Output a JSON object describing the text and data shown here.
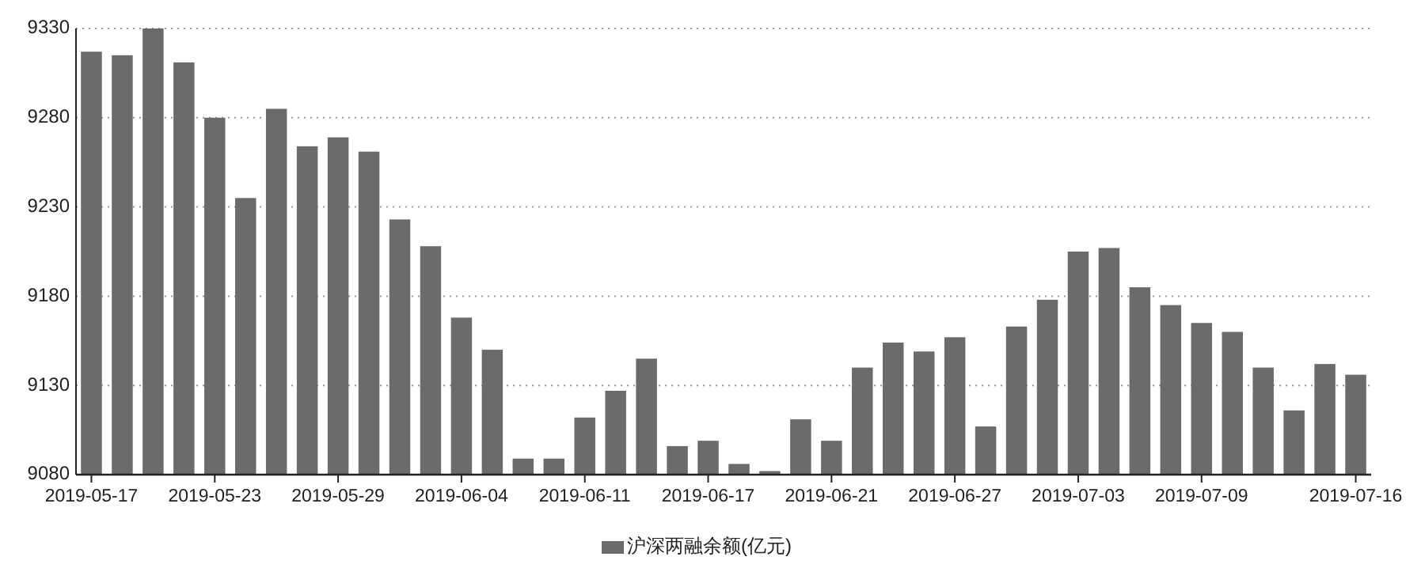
{
  "chart_data": {
    "type": "bar",
    "categories": [
      "2019-05-17",
      null,
      null,
      null,
      "2019-05-23",
      null,
      null,
      null,
      "2019-05-29",
      null,
      null,
      null,
      "2019-06-04",
      null,
      null,
      null,
      "2019-06-11",
      null,
      null,
      null,
      "2019-06-17",
      null,
      null,
      null,
      "2019-06-21",
      null,
      null,
      null,
      "2019-06-27",
      null,
      null,
      null,
      "2019-07-03",
      null,
      null,
      null,
      "2019-07-09",
      null,
      null,
      null,
      null,
      "2019-07-16"
    ],
    "series": [
      {
        "name": "沪深两融余额(亿元)",
        "color": "#6b6b6b",
        "values": [
          9317,
          9315,
          9330,
          9311,
          9280,
          9235,
          9285,
          9264,
          9269,
          9261,
          9223,
          9208,
          9168,
          9150,
          9089,
          9089,
          9112,
          9127,
          9145,
          9096,
          9099,
          9086,
          9082,
          9111,
          9099,
          9140,
          9154,
          9149,
          9157,
          9107,
          9163,
          9178,
          9205,
          9207,
          9185,
          9175,
          9165,
          9160,
          9140,
          9116,
          9142,
          9136
        ]
      }
    ],
    "ylim": [
      9080,
      9330
    ],
    "yticks": [
      9080,
      9130,
      9180,
      9230,
      9280,
      9330
    ],
    "grid": "y",
    "legend": "bottom"
  }
}
